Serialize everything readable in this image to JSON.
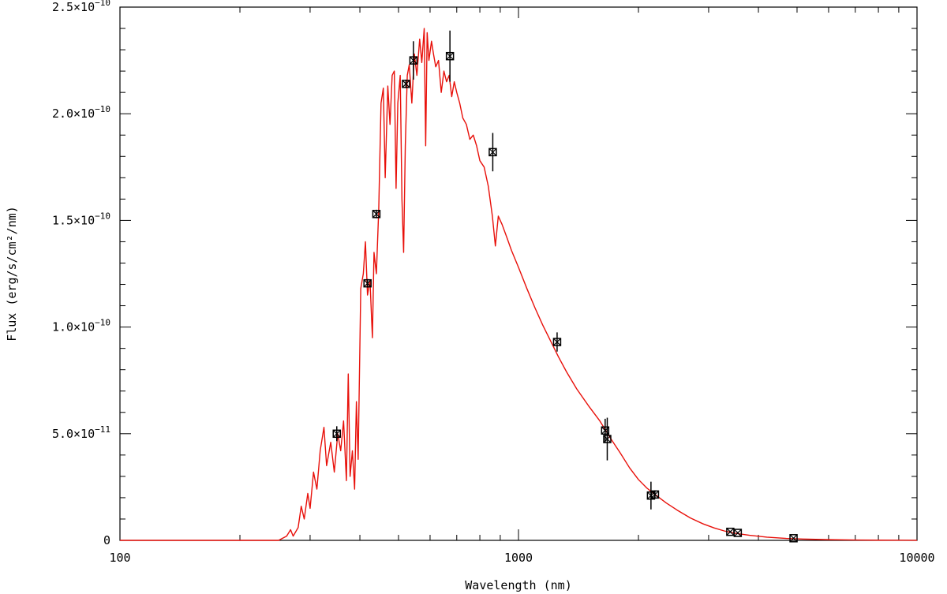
{
  "chart_data": {
    "type": "line",
    "title": "",
    "xlabel": "Wavelength (nm)",
    "ylabel": "Flux (erg/s/cm²/nm)",
    "x_scale": "log",
    "xlim": [
      100,
      10000
    ],
    "ylim": [
      0,
      2.5e-10
    ],
    "grid": false,
    "x_tick_labels": [
      {
        "value": 100,
        "label": "100"
      },
      {
        "value": 1000,
        "label": "1000"
      },
      {
        "value": 10000,
        "label": "10000"
      }
    ],
    "y_tick_labels": [
      {
        "value": 0,
        "mant": "0",
        "exp": ""
      },
      {
        "value": 5e-11,
        "mant": "5.0×10",
        "exp": "−11"
      },
      {
        "value": 1e-10,
        "mant": "1.0×10",
        "exp": "−10"
      },
      {
        "value": 1.5e-10,
        "mant": "1.5×10",
        "exp": "−10"
      },
      {
        "value": 2e-10,
        "mant": "2.0×10",
        "exp": "−10"
      },
      {
        "value": 2.5e-10,
        "mant": "2.5×10",
        "exp": "−10"
      }
    ],
    "model": {
      "color": "#e8100a",
      "points": [
        [
          100,
          0
        ],
        [
          200,
          0
        ],
        [
          250,
          0.0
        ],
        [
          262,
          2e-12
        ],
        [
          268,
          5e-12
        ],
        [
          272,
          2e-12
        ],
        [
          280,
          6e-12
        ],
        [
          285,
          1.6e-11
        ],
        [
          290,
          1e-11
        ],
        [
          296,
          2.2e-11
        ],
        [
          300,
          1.5e-11
        ],
        [
          306,
          3.2e-11
        ],
        [
          312,
          2.4e-11
        ],
        [
          318,
          4.2e-11
        ],
        [
          325,
          5.3e-11
        ],
        [
          330,
          3.5e-11
        ],
        [
          338,
          4.6e-11
        ],
        [
          345,
          3.2e-11
        ],
        [
          352,
          5e-11
        ],
        [
          358,
          4.2e-11
        ],
        [
          364,
          5.6e-11
        ],
        [
          370,
          2.8e-11
        ],
        [
          374,
          7.8e-11
        ],
        [
          378,
          3e-11
        ],
        [
          383,
          4.2e-11
        ],
        [
          388,
          2.4e-11
        ],
        [
          392,
          6.5e-11
        ],
        [
          396,
          3.8e-11
        ],
        [
          402,
          1.18e-10
        ],
        [
          408,
          1.25e-10
        ],
        [
          413,
          1.4e-10
        ],
        [
          418,
          1.15e-10
        ],
        [
          424,
          1.22e-10
        ],
        [
          430,
          9.5e-11
        ],
        [
          434,
          1.35e-10
        ],
        [
          440,
          1.25e-10
        ],
        [
          446,
          1.55e-10
        ],
        [
          452,
          2.05e-10
        ],
        [
          458,
          2.12e-10
        ],
        [
          463,
          1.7e-10
        ],
        [
          470,
          2.13e-10
        ],
        [
          476,
          1.95e-10
        ],
        [
          482,
          2.18e-10
        ],
        [
          488,
          2.2e-10
        ],
        [
          493,
          1.65e-10
        ],
        [
          498,
          2.05e-10
        ],
        [
          505,
          2.18e-10
        ],
        [
          510,
          1.6e-10
        ],
        [
          515,
          1.35e-10
        ],
        [
          520,
          1.85e-10
        ],
        [
          526,
          2.18e-10
        ],
        [
          532,
          2.23e-10
        ],
        [
          540,
          2.05e-10
        ],
        [
          548,
          2.28e-10
        ],
        [
          556,
          2.18e-10
        ],
        [
          565,
          2.35e-10
        ],
        [
          572,
          2.24e-10
        ],
        [
          580,
          2.4e-10
        ],
        [
          585,
          1.85e-10
        ],
        [
          590,
          2.38e-10
        ],
        [
          596,
          2.25e-10
        ],
        [
          605,
          2.34e-10
        ],
        [
          612,
          2.28e-10
        ],
        [
          620,
          2.22e-10
        ],
        [
          630,
          2.25e-10
        ],
        [
          640,
          2.1e-10
        ],
        [
          650,
          2.2e-10
        ],
        [
          660,
          2.15e-10
        ],
        [
          670,
          2.18e-10
        ],
        [
          680,
          2.08e-10
        ],
        [
          690,
          2.15e-10
        ],
        [
          700,
          2.1e-10
        ],
        [
          712,
          2.05e-10
        ],
        [
          725,
          1.98e-10
        ],
        [
          740,
          1.95e-10
        ],
        [
          755,
          1.88e-10
        ],
        [
          770,
          1.9e-10
        ],
        [
          785,
          1.85e-10
        ],
        [
          800,
          1.78e-10
        ],
        [
          820,
          1.75e-10
        ],
        [
          840,
          1.66e-10
        ],
        [
          860,
          1.52e-10
        ],
        [
          875,
          1.38e-10
        ],
        [
          890,
          1.52e-10
        ],
        [
          910,
          1.48e-10
        ],
        [
          935,
          1.42e-10
        ],
        [
          960,
          1.36e-10
        ],
        [
          1000,
          1.28e-10
        ],
        [
          1050,
          1.18e-10
        ],
        [
          1100,
          1.09e-10
        ],
        [
          1150,
          1.01e-10
        ],
        [
          1200,
          9.4e-11
        ],
        [
          1260,
          8.6e-11
        ],
        [
          1320,
          7.9e-11
        ],
        [
          1400,
          7.1e-11
        ],
        [
          1500,
          6.3e-11
        ],
        [
          1600,
          5.6e-11
        ],
        [
          1700,
          4.8e-11
        ],
        [
          1800,
          4.1e-11
        ],
        [
          1900,
          3.4e-11
        ],
        [
          2000,
          2.85e-11
        ],
        [
          2100,
          2.45e-11
        ],
        [
          2200,
          2.15e-11
        ],
        [
          2350,
          1.75e-11
        ],
        [
          2500,
          1.42e-11
        ],
        [
          2700,
          1.05e-11
        ],
        [
          2900,
          7.8e-12
        ],
        [
          3100,
          5.8e-12
        ],
        [
          3300,
          4.3e-12
        ],
        [
          3500,
          3.3e-12
        ],
        [
          3800,
          2.4e-12
        ],
        [
          4200,
          1.5e-12
        ],
        [
          4700,
          9e-13
        ],
        [
          5300,
          5.5e-13
        ],
        [
          6000,
          3.2e-13
        ],
        [
          7000,
          1.6e-13
        ],
        [
          8000,
          9e-14
        ],
        [
          10000,
          4e-14
        ]
      ]
    },
    "photometry": {
      "color": "#000000",
      "points": [
        {
          "x": 350,
          "y": 5e-11,
          "err": 3.5e-12
        },
        {
          "x": 418,
          "y": 1.205e-10,
          "err": 2e-12
        },
        {
          "x": 440,
          "y": 1.53e-10,
          "err": 2e-12
        },
        {
          "x": 522,
          "y": 2.14e-10,
          "err": 2e-12
        },
        {
          "x": 545,
          "y": 2.25e-10,
          "err": 9e-12
        },
        {
          "x": 673,
          "y": 2.27e-10,
          "err": 1.2e-11
        },
        {
          "x": 862,
          "y": 1.82e-10,
          "err": 9e-12
        },
        {
          "x": 1250,
          "y": 9.3e-11,
          "err": 4.5e-12
        },
        {
          "x": 1650,
          "y": 5.15e-11,
          "err": 5.5e-12
        },
        {
          "x": 1670,
          "y": 4.75e-11,
          "err": 1e-11
        },
        {
          "x": 2150,
          "y": 2.1e-11,
          "err": 6.5e-12
        },
        {
          "x": 2200,
          "y": 2.15e-11,
          "err": 2e-12
        },
        {
          "x": 3400,
          "y": 4e-12,
          "err": 5e-13
        },
        {
          "x": 3550,
          "y": 3.5e-12,
          "err": 5e-13
        },
        {
          "x": 4900,
          "y": 1e-12,
          "err": 3e-13
        }
      ]
    }
  }
}
